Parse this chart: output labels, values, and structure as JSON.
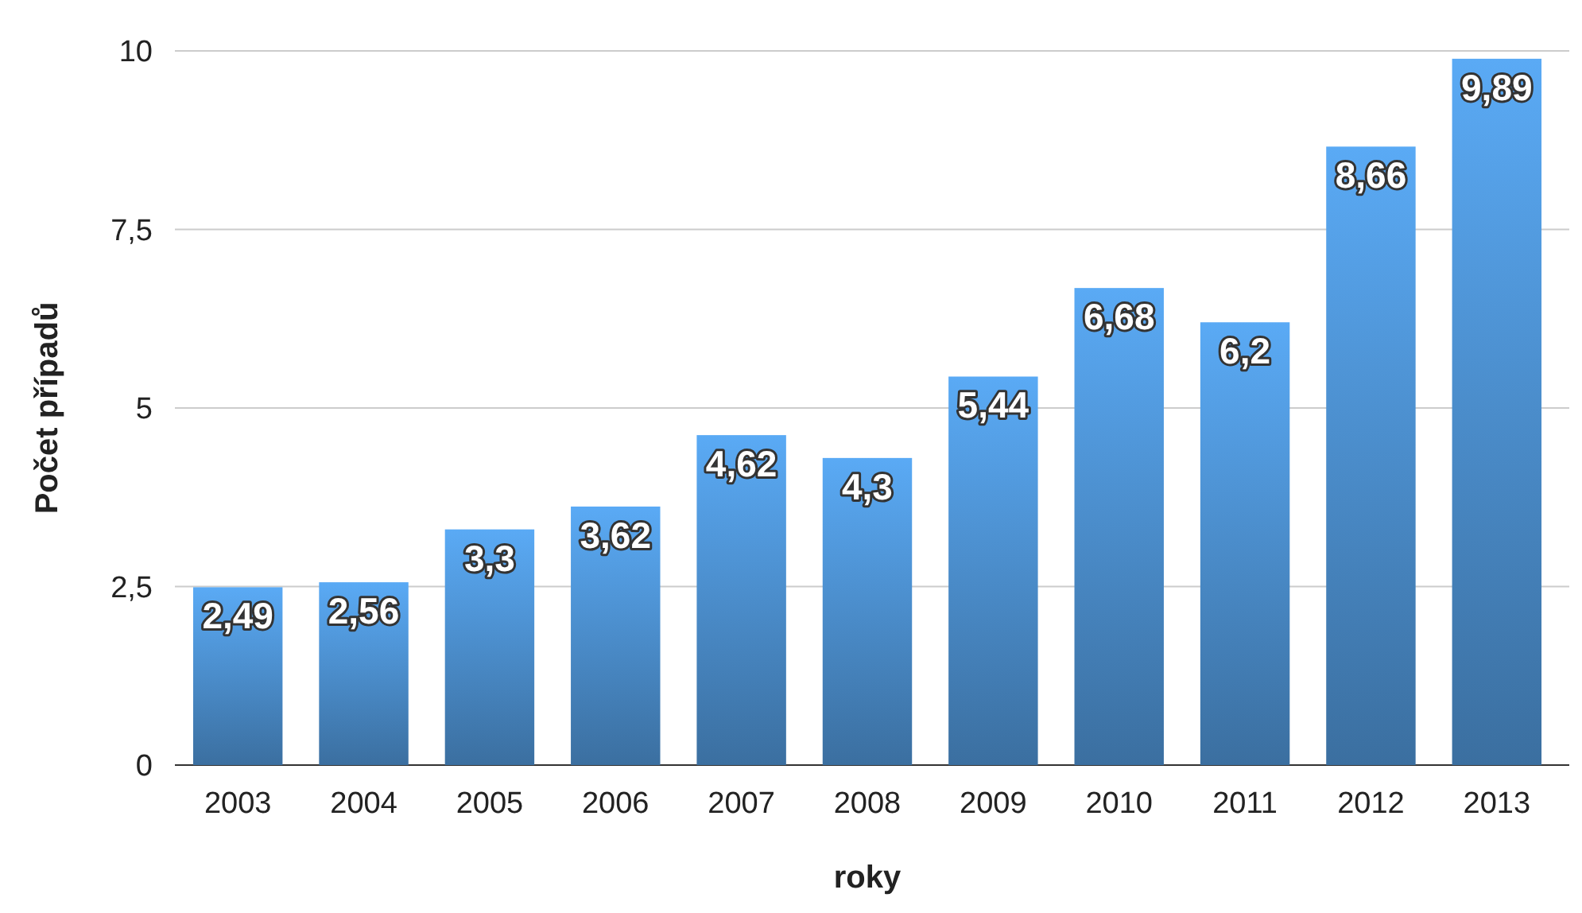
{
  "chart_data": {
    "type": "bar",
    "xlabel": "roky",
    "ylabel": "Počet případů",
    "categories": [
      "2003",
      "2004",
      "2005",
      "2006",
      "2007",
      "2008",
      "2009",
      "2010",
      "2011",
      "2012",
      "2013"
    ],
    "values": [
      2.49,
      2.56,
      3.3,
      3.62,
      4.62,
      4.3,
      5.44,
      6.68,
      6.2,
      8.66,
      9.89
    ],
    "color": "#5aaaf5",
    "ylim": [
      0,
      10
    ],
    "yticks": [
      0,
      {
        "value": 2.5,
        "label": "2,5"
      },
      5,
      {
        "value": 7.5,
        "label": "7,5"
      },
      10
    ],
    "value_labels": [
      "2,49",
      "2,56",
      "3,3",
      "3,62",
      "4,62",
      "4,3",
      "5,44",
      "6,68",
      "6,2",
      "8,66",
      "9,89"
    ],
    "grid": "y"
  }
}
